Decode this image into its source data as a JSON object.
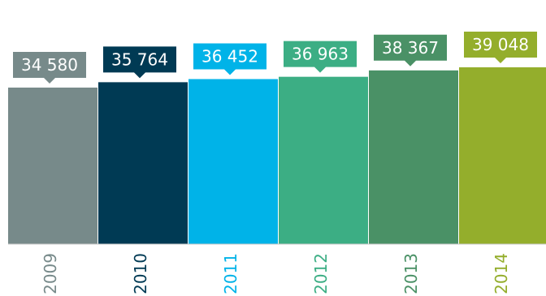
{
  "chart_data": {
    "type": "bar",
    "title": "",
    "xlabel": "",
    "ylabel": "",
    "categories": [
      "2009",
      "2010",
      "2011",
      "2012",
      "2013",
      "2014"
    ],
    "values": [
      34580,
      35764,
      36452,
      36963,
      38367,
      39048
    ],
    "value_labels": [
      "34 580",
      "35 764",
      "36 452",
      "36 963",
      "38 367",
      "39 048"
    ],
    "colors": [
      "#778a8a",
      "#003a54",
      "#00b3e8",
      "#3cae84",
      "#4a9166",
      "#94ae2c"
    ],
    "grid": false,
    "legend": "none"
  }
}
